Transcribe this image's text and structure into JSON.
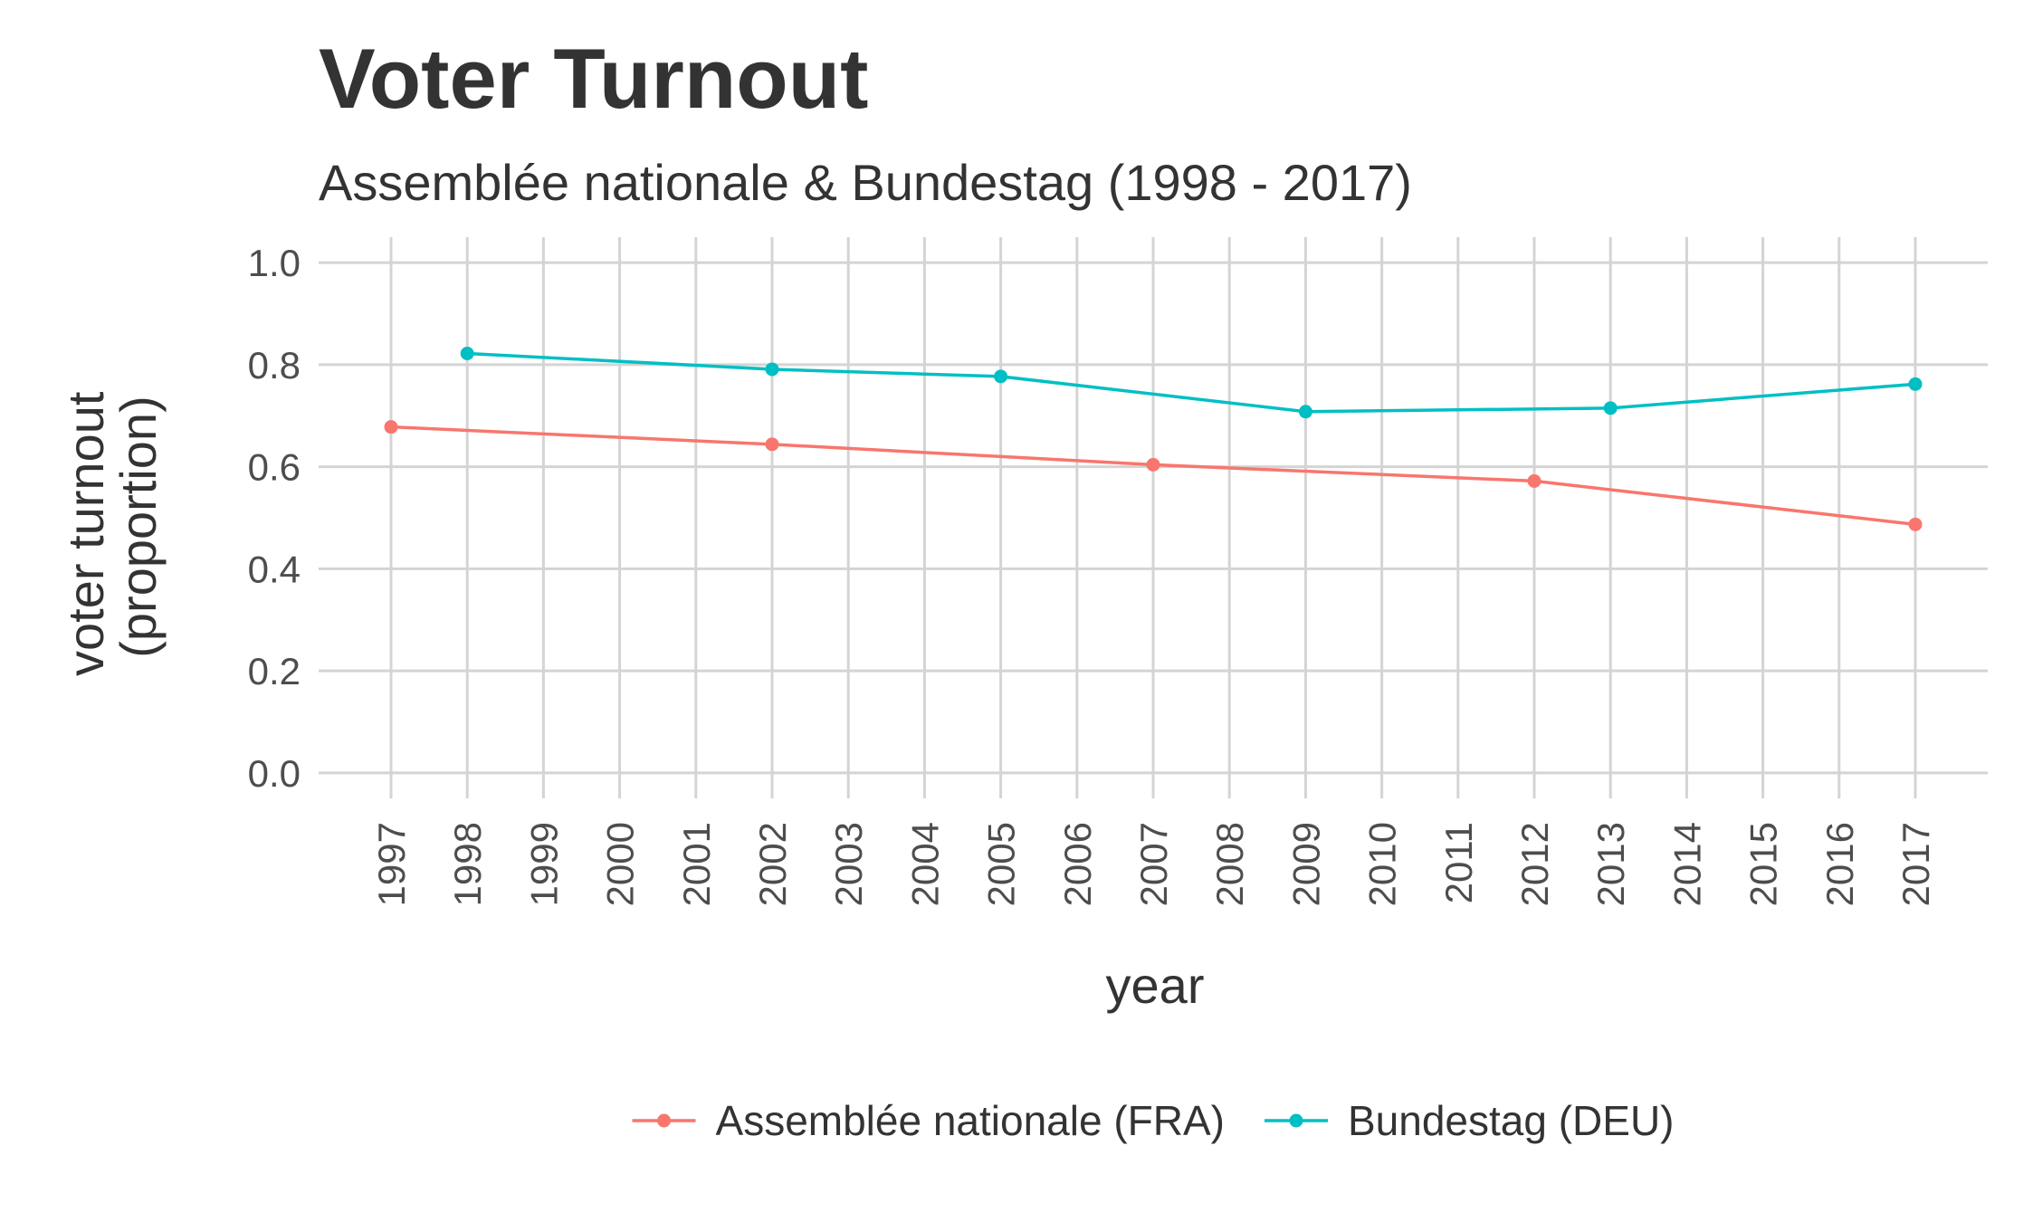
{
  "chart_data": {
    "type": "line",
    "title": "Voter Turnout",
    "subtitle": "Assemblée nationale & Bundestag (1998 - 2017)",
    "xlabel": "year",
    "ylabel": [
      "voter turnout",
      "(proportion)"
    ],
    "ylim": [
      0,
      1
    ],
    "yticks": [
      0.0,
      0.2,
      0.4,
      0.6,
      0.8,
      1.0
    ],
    "ytick_labels": [
      "0.0",
      "0.2",
      "0.4",
      "0.6",
      "0.8",
      "1.0"
    ],
    "xticks": [
      1997,
      1998,
      1999,
      2000,
      2001,
      2002,
      2003,
      2004,
      2005,
      2006,
      2007,
      2008,
      2009,
      2010,
      2011,
      2012,
      2013,
      2014,
      2015,
      2016,
      2017
    ],
    "grid": true,
    "legend_position": "bottom",
    "series": [
      {
        "name": "Assemblée nationale (FRA)",
        "color": "#F8766D",
        "x": [
          1997,
          2002,
          2007,
          2012,
          2017
        ],
        "y": [
          0.678,
          0.644,
          0.604,
          0.572,
          0.487
        ]
      },
      {
        "name": "Bundestag (DEU)",
        "color": "#00BFC4",
        "x": [
          1998,
          2002,
          2005,
          2009,
          2013,
          2017
        ],
        "y": [
          0.822,
          0.791,
          0.777,
          0.708,
          0.715,
          0.762
        ]
      }
    ]
  }
}
